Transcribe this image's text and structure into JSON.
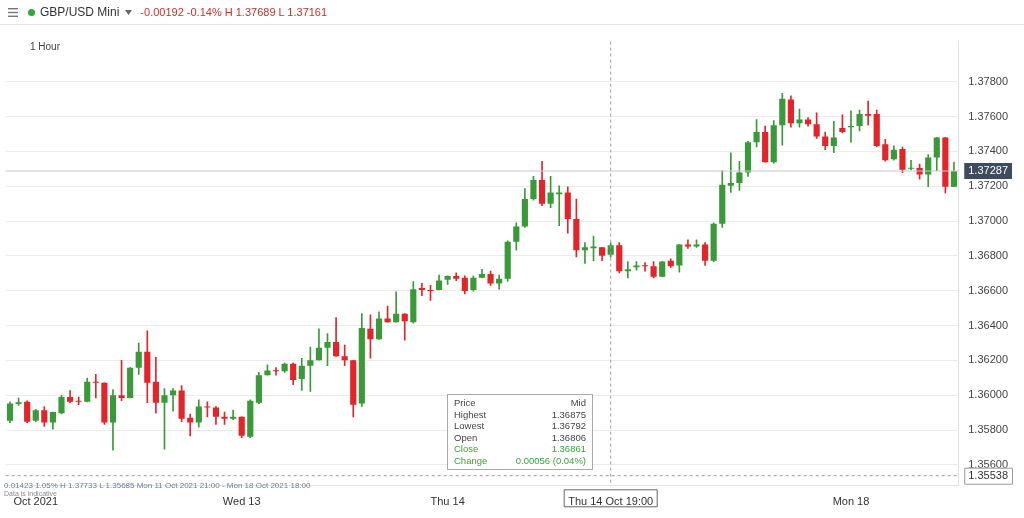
{
  "chart_data": {
    "type": "candlestick",
    "title": "GBP/USD Mini",
    "subtitle": "-0.00192 -0.14% H 1.37689 L 1.37161",
    "categories": [
      null,
      null,
      null,
      "Oct 2021",
      null,
      null,
      null,
      null,
      null,
      null,
      null,
      null,
      null,
      null,
      null,
      null,
      null,
      null,
      null,
      null,
      null,
      null,
      null,
      null,
      null,
      null,
      null,
      "Wed 13",
      null,
      null,
      null,
      null,
      null,
      null,
      null,
      null,
      null,
      null,
      null,
      null,
      null,
      null,
      null,
      null,
      null,
      null,
      null,
      null,
      null,
      null,
      null,
      "Thu 14",
      null,
      null,
      null,
      null,
      null,
      null,
      null,
      null,
      null,
      null,
      null,
      null,
      null,
      null,
      null,
      null,
      null,
      null,
      "Thu 14 Oct 19:00",
      null,
      null,
      null,
      null,
      null,
      null,
      null,
      null,
      null,
      null,
      null,
      null,
      null,
      null,
      null,
      null,
      null,
      null,
      null,
      null,
      null,
      null,
      null,
      null,
      null,
      null,
      null,
      "Mon 18",
      null,
      null,
      null,
      null,
      null,
      null,
      null,
      null,
      null,
      null,
      null,
      null
    ],
    "ohlc": [
      [
        1.35854,
        1.35962,
        1.35843,
        1.35952
      ],
      [
        1.3595,
        1.35984,
        1.35941,
        1.35959
      ],
      [
        1.35962,
        1.35968,
        1.35843,
        1.35848
      ],
      [
        1.35854,
        1.35919,
        1.35848,
        1.35914
      ],
      [
        1.35914,
        1.35935,
        1.35821,
        1.35843
      ],
      [
        1.35843,
        1.35903,
        1.35805,
        1.35903
      ],
      [
        1.35897,
        1.36,
        1.35892,
        1.3599
      ],
      [
        1.3599,
        1.36027,
        1.35957,
        1.35962
      ],
      [
        1.35968,
        1.3599,
        1.35946,
        1.35962
      ],
      [
        1.35962,
        1.36099,
        1.35962,
        1.36077
      ],
      [
        1.36077,
        1.3612,
        1.35984,
        1.36071
      ],
      [
        1.36071,
        1.36071,
        1.35832,
        1.35843
      ],
      [
        1.35843,
        1.36033,
        1.35685,
        1.36
      ],
      [
        1.36,
        1.36201,
        1.35968,
        1.35984
      ],
      [
        1.35984,
        1.36158,
        1.35984,
        1.36158
      ],
      [
        1.36158,
        1.36299,
        1.3612,
        1.3625
      ],
      [
        1.3625,
        1.3637,
        1.35957,
        1.36071
      ],
      [
        1.36077,
        1.36218,
        1.35897,
        1.35957
      ],
      [
        1.35957,
        1.36038,
        1.35691,
        1.36
      ],
      [
        1.36,
        1.36038,
        1.35908,
        1.36027
      ],
      [
        1.36027,
        1.36055,
        1.35848,
        1.35865
      ],
      [
        1.3587,
        1.35892,
        1.35767,
        1.35843
      ],
      [
        1.35843,
        1.35973,
        1.35816,
        1.35935
      ],
      [
        1.35935,
        1.35962,
        1.35876,
        1.3593
      ],
      [
        1.3593,
        1.35935,
        1.35832,
        1.35876
      ],
      [
        1.35876,
        1.35903,
        1.35832,
        1.35865
      ],
      [
        1.35865,
        1.35914,
        1.35859,
        1.35876
      ],
      [
        1.35876,
        1.35876,
        1.35756,
        1.35767
      ],
      [
        1.35762,
        1.35973,
        1.35756,
        1.35968
      ],
      [
        1.35957,
        1.36131,
        1.35952,
        1.36115
      ],
      [
        1.36115,
        1.36174,
        1.36115,
        1.36142
      ],
      [
        1.36142,
        1.36158,
        1.36115,
        1.36137
      ],
      [
        1.36137,
        1.36185,
        1.36131,
        1.3618
      ],
      [
        1.3618,
        1.36185,
        1.3606,
        1.36088
      ],
      [
        1.36093,
        1.36212,
        1.36027,
        1.36169
      ],
      [
        1.36169,
        1.36277,
        1.36022,
        1.36201
      ],
      [
        1.36201,
        1.36381,
        1.36201,
        1.36272
      ],
      [
        1.36272,
        1.36354,
        1.36169,
        1.36305
      ],
      [
        1.36305,
        1.36446,
        1.36223,
        1.36223
      ],
      [
        1.36223,
        1.36288,
        1.36169,
        1.36201
      ],
      [
        1.36201,
        1.36201,
        1.35876,
        1.35946
      ],
      [
        1.35952,
        1.36468,
        1.35935,
        1.36386
      ],
      [
        1.36381,
        1.36462,
        1.36212,
        1.36321
      ],
      [
        1.36321,
        1.36479,
        1.36321,
        1.36441
      ],
      [
        1.36441,
        1.36511,
        1.36419,
        1.36419
      ],
      [
        1.36419,
        1.36593,
        1.36419,
        1.36468
      ],
      [
        1.36468,
        1.36468,
        1.36316,
        1.36425
      ],
      [
        1.36419,
        1.36653,
        1.36414,
        1.36609
      ],
      [
        1.36615,
        1.36642,
        1.36571,
        1.36604
      ],
      [
        1.36604,
        1.36631,
        1.36544,
        1.36598
      ],
      [
        1.36604,
        1.3669,
        1.36604,
        1.36658
      ],
      [
        1.36663,
        1.36685,
        1.36636,
        1.36685
      ],
      [
        1.36685,
        1.36702,
        1.36658,
        1.36669
      ],
      [
        1.36674,
        1.36685,
        1.36582,
        1.36598
      ],
      [
        1.36604,
        1.36685,
        1.36598,
        1.36674
      ],
      [
        1.36674,
        1.36723,
        1.36674,
        1.36696
      ],
      [
        1.36696,
        1.36712,
        1.36631,
        1.36642
      ],
      [
        1.36642,
        1.3669,
        1.36609,
        1.36669
      ],
      [
        1.36669,
        1.36887,
        1.36653,
        1.36881
      ],
      [
        1.36881,
        1.3699,
        1.36832,
        1.36968
      ],
      [
        1.36968,
        1.37186,
        1.36963,
        1.37126
      ],
      [
        1.37126,
        1.37256,
        1.3712,
        1.37235
      ],
      [
        1.37235,
        1.37343,
        1.37088,
        1.37099
      ],
      [
        1.37099,
        1.37256,
        1.37077,
        1.37164
      ],
      [
        1.37153,
        1.37202,
        1.36974,
        1.37164
      ],
      [
        1.37164,
        1.37197,
        1.3693,
        1.37012
      ],
      [
        1.37012,
        1.37126,
        1.36794,
        1.36832
      ],
      [
        1.36832,
        1.36876,
        1.36756,
        1.36849
      ],
      [
        1.36843,
        1.36914,
        1.36772,
        1.36854
      ],
      [
        1.36849,
        1.36849,
        1.36772,
        1.368
      ],
      [
        1.36806,
        1.36875,
        1.36792,
        1.36861
      ],
      [
        1.36861,
        1.36876,
        1.36702,
        1.36712
      ],
      [
        1.36712,
        1.36767,
        1.36674,
        1.36723
      ],
      [
        1.36734,
        1.36767,
        1.36718,
        1.36745
      ],
      [
        1.36745,
        1.36761,
        1.36712,
        1.3674
      ],
      [
        1.3674,
        1.36767,
        1.36674,
        1.3668
      ],
      [
        1.3668,
        1.36767,
        1.3668,
        1.36767
      ],
      [
        1.36772,
        1.36783,
        1.36734,
        1.3674
      ],
      [
        1.36745,
        1.36865,
        1.36707,
        1.36865
      ],
      [
        1.36865,
        1.36892,
        1.36843,
        1.36854
      ],
      [
        1.36854,
        1.36892,
        1.36849,
        1.36865
      ],
      [
        1.36865,
        1.36876,
        1.36745,
        1.36772
      ],
      [
        1.36772,
        1.3699,
        1.36767,
        1.36984
      ],
      [
        1.36984,
        1.37289,
        1.36963,
        1.37208
      ],
      [
        1.37202,
        1.37392,
        1.37164,
        1.37218
      ],
      [
        1.37218,
        1.37343,
        1.37175,
        1.37278
      ],
      [
        1.37278,
        1.37457,
        1.37256,
        1.37452
      ],
      [
        1.37452,
        1.37583,
        1.37425,
        1.37511
      ],
      [
        1.37511,
        1.37545,
        1.37338,
        1.37338
      ],
      [
        1.37338,
        1.37577,
        1.37332,
        1.3755
      ],
      [
        1.3755,
        1.37733,
        1.37436,
        1.37702
      ],
      [
        1.37697,
        1.37718,
        1.37539,
        1.37561
      ],
      [
        1.37561,
        1.37643,
        1.37539,
        1.37583
      ],
      [
        1.37583,
        1.37594,
        1.37545,
        1.37556
      ],
      [
        1.37556,
        1.37621,
        1.37474,
        1.37485
      ],
      [
        1.37485,
        1.37511,
        1.37409,
        1.37431
      ],
      [
        1.37431,
        1.37572,
        1.37392,
        1.3748
      ],
      [
        1.37534,
        1.3761,
        1.37506,
        1.37511
      ],
      [
        1.37539,
        1.37632,
        1.37452,
        1.37545
      ],
      [
        1.37545,
        1.37637,
        1.37517,
        1.37615
      ],
      [
        1.37615,
        1.37689,
        1.3755,
        1.37604
      ],
      [
        1.37615,
        1.37637,
        1.37425,
        1.37431
      ],
      [
        1.37441,
        1.37469,
        1.37343,
        1.37349
      ],
      [
        1.37354,
        1.37431,
        1.37349,
        1.37409
      ],
      [
        1.37414,
        1.37425,
        1.37278,
        1.37294
      ],
      [
        1.373,
        1.37349,
        1.37294,
        1.37305
      ],
      [
        1.37305,
        1.37327,
        1.3724,
        1.37267
      ],
      [
        1.37267,
        1.37381,
        1.37197,
        1.37365
      ],
      [
        1.37365,
        1.3748,
        1.37289,
        1.3748
      ],
      [
        1.3748,
        1.3748,
        1.37161,
        1.37197
      ],
      [
        1.37197,
        1.37338,
        1.37197,
        1.37287
      ]
    ],
    "colors": [
      "#3a9a3a",
      "#3a9a3a",
      "#e3242b",
      "#3a9a3a",
      "#e3242b",
      "#3a9a3a",
      "#3a9a3a",
      "#e3242b",
      "#e3242b",
      "#3a9a3a",
      "#e3242b",
      "#e3242b",
      "#3a9a3a",
      "#e3242b",
      "#3a9a3a",
      "#3a9a3a",
      "#e3242b",
      "#e3242b",
      "#3a9a3a",
      "#3a9a3a",
      "#e3242b",
      "#e3242b",
      "#3a9a3a",
      "#e3242b",
      "#e3242b",
      "#e3242b",
      "#3a9a3a",
      "#e3242b",
      "#3a9a3a",
      "#3a9a3a",
      "#3a9a3a",
      "#e3242b",
      "#3a9a3a",
      "#e3242b",
      "#3a9a3a",
      "#3a9a3a",
      "#3a9a3a",
      "#3a9a3a",
      "#e3242b",
      "#e3242b",
      "#e3242b",
      "#3a9a3a",
      "#e3242b",
      "#3a9a3a",
      "#e3242b",
      "#3a9a3a",
      "#e3242b",
      "#3a9a3a",
      "#e3242b",
      "#e3242b",
      "#3a9a3a",
      "#3a9a3a",
      "#e3242b",
      "#e3242b",
      "#3a9a3a",
      "#3a9a3a",
      "#e3242b",
      "#3a9a3a",
      "#3a9a3a",
      "#3a9a3a",
      "#3a9a3a",
      "#3a9a3a",
      "#e3242b",
      "#3a9a3a",
      "#3a9a3a",
      "#e3242b",
      "#e3242b",
      "#3a9a3a",
      "#3a9a3a",
      "#e3242b",
      "#3a9a3a",
      "#e3242b",
      "#3a9a3a",
      "#3a9a3a",
      "#e3242b",
      "#e3242b",
      "#3a9a3a",
      "#e3242b",
      "#3a9a3a",
      "#e3242b",
      "#3a9a3a",
      "#e3242b",
      "#3a9a3a",
      "#3a9a3a",
      "#3a9a3a",
      "#3a9a3a",
      "#3a9a3a",
      "#3a9a3a",
      "#e3242b",
      "#3a9a3a",
      "#3a9a3a",
      "#e3242b",
      "#3a9a3a",
      "#e3242b",
      "#e3242b",
      "#e3242b",
      "#3a9a3a",
      "#e3242b",
      "#3a9a3a",
      "#3a9a3a",
      "#e3242b",
      "#e3242b",
      "#e3242b",
      "#3a9a3a",
      "#e3242b",
      "#3a9a3a",
      "#e3242b",
      "#3a9a3a",
      "#3a9a3a",
      "#e3242b",
      "#3a9a3a"
    ],
    "ylim": [
      1.3548,
      1.3803
    ],
    "yticks": [
      {
        "value": 1.356,
        "label": "1.35600"
      },
      {
        "value": 1.358,
        "label": "1.35800"
      },
      {
        "value": 1.36,
        "label": "1.36000"
      },
      {
        "value": 1.362,
        "label": "1.36200"
      },
      {
        "value": 1.364,
        "label": "1.36400"
      },
      {
        "value": 1.366,
        "label": "1.36600"
      },
      {
        "value": 1.368,
        "label": "1.36800"
      },
      {
        "value": 1.37,
        "label": "1.37000"
      },
      {
        "value": 1.372,
        "label": "1.37200"
      },
      {
        "value": 1.374,
        "label": "1.37400"
      },
      {
        "value": 1.376,
        "label": "1.37600"
      },
      {
        "value": 1.378,
        "label": "1.37800"
      }
    ],
    "grid": "y",
    "ref_lines": [
      {
        "axis": "y",
        "value": 1.37287,
        "label": "1.37287",
        "color": "#c4c8cc",
        "line_style": "solid"
      },
      {
        "axis": "y",
        "value": 1.35538,
        "label": "1.35538",
        "color": "#9a9a9a",
        "line_style": "dashed"
      },
      {
        "axis": "x",
        "value": "Thu 14 Oct 19:00",
        "label": null,
        "color": "#9a9a9a",
        "line_style": "dashed"
      }
    ],
    "annotations": [
      "1 Hour",
      "0.01423 1.05% H 1.37733 L 1.35685 Mon 11 Oct 2021 21:00 - Mon 18 Oct 2021 18:00",
      "Data is indicative",
      "Price Mid",
      "Highest 1.36875",
      "Lowest 1.36792",
      "Open 1.36806",
      "Close 1.36861",
      "Change 0.00056 (0.04%)"
    ]
  }
}
